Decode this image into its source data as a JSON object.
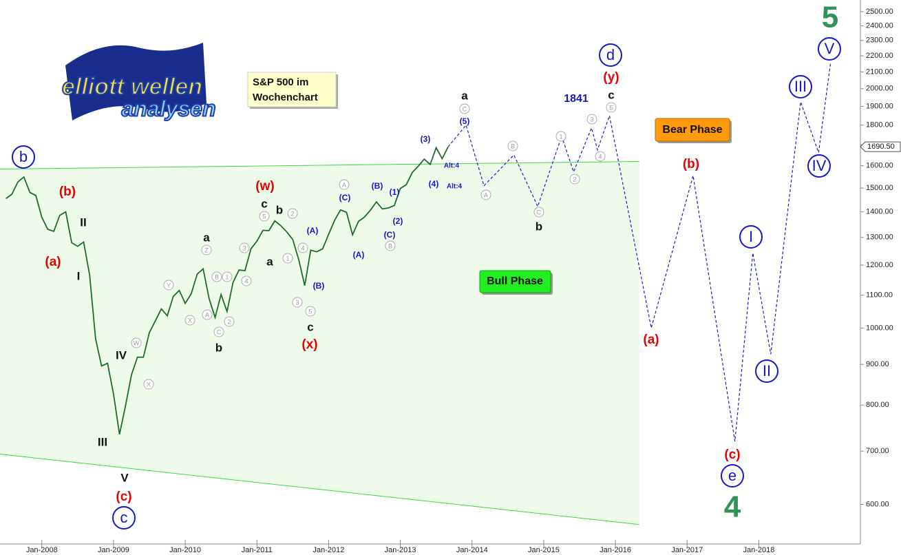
{
  "chart_data": {
    "type": "line",
    "title_lines": [
      "S&P 500 im",
      "Wochenchart"
    ],
    "logo": [
      "elliott wellen",
      "analysen"
    ],
    "bull_label": "Bull Phase",
    "bear_label": "Bear Phase",
    "log": true,
    "grid": false,
    "xlim": [
      "2007-06",
      "2019-06"
    ],
    "ylim": [
      535,
      2586
    ],
    "xticks": [
      {
        "value": "2008-01",
        "label": "Jan-2008"
      },
      {
        "value": "2009-01",
        "label": "Jan-2009"
      },
      {
        "value": "2010-01",
        "label": "Jan-2010"
      },
      {
        "value": "2011-01",
        "label": "Jan-2011"
      },
      {
        "value": "2012-01",
        "label": "Jan-2012"
      },
      {
        "value": "2013-01",
        "label": "Jan-2013"
      },
      {
        "value": "2014-01",
        "label": "Jan-2014"
      },
      {
        "value": "2015-01",
        "label": "Jan-2015"
      },
      {
        "value": "2016-01",
        "label": "Jan-2016"
      },
      {
        "value": "2017-01",
        "label": "Jan-2017"
      },
      {
        "value": "2018-01",
        "label": "Jan-2018"
      }
    ],
    "yticks": [
      {
        "value": 600,
        "label": "600.00"
      },
      {
        "value": 700,
        "label": "700.00"
      },
      {
        "value": 800,
        "label": "800.00"
      },
      {
        "value": 900,
        "label": "900.00"
      },
      {
        "value": 1000,
        "label": "1000.00"
      },
      {
        "value": 1100,
        "label": "1100.00"
      },
      {
        "value": 1200,
        "label": "1200.00"
      },
      {
        "value": 1300,
        "label": "1300.00"
      },
      {
        "value": 1400,
        "label": "1400.00"
      },
      {
        "value": 1500,
        "label": "1500.00"
      },
      {
        "value": 1600,
        "label": "1600.00"
      },
      {
        "value": 1700,
        "label": "1700.00"
      },
      {
        "value": 1800,
        "label": "1800.00"
      },
      {
        "value": 1900,
        "label": "1900.00"
      },
      {
        "value": 2000,
        "label": "2000.00"
      },
      {
        "value": 2100,
        "label": "2100.00"
      },
      {
        "value": 2200,
        "label": "2200.00"
      },
      {
        "value": 2300,
        "label": "2300.00"
      },
      {
        "value": 2400,
        "label": "2400.00"
      },
      {
        "value": 2500,
        "label": "2500.00"
      }
    ],
    "last_value": {
      "value": 1690.5,
      "label": "1690.50"
    },
    "channel": {
      "color": "#33dd33",
      "fill": "#effbea",
      "x": [
        "2007-06",
        "2016-05"
      ],
      "upper": [
        1585,
        1620
      ],
      "lower": [
        694,
        566
      ]
    },
    "series": [
      {
        "color": "#1d6b2a",
        "dashed": false,
        "x": [
          "2007-07",
          "2007-08",
          "2007-09",
          "2007-10",
          "2007-11",
          "2007-12",
          "2008-01",
          "2008-02",
          "2008-03",
          "2008-04",
          "2008-05",
          "2008-06",
          "2008-07",
          "2008-08",
          "2008-09",
          "2008-10",
          "2008-11",
          "2008-12",
          "2009-01",
          "2009-02",
          "2009-03",
          "2009-04",
          "2009-05",
          "2009-06",
          "2009-07",
          "2009-08",
          "2009-09",
          "2009-10",
          "2009-11",
          "2009-12",
          "2010-01",
          "2010-02",
          "2010-03",
          "2010-04",
          "2010-05",
          "2010-06",
          "2010-07",
          "2010-08",
          "2010-09",
          "2010-10",
          "2010-11",
          "2010-12",
          "2011-01",
          "2011-02",
          "2011-03",
          "2011-04",
          "2011-05",
          "2011-06",
          "2011-07",
          "2011-08",
          "2011-09",
          "2011-10",
          "2011-11",
          "2011-12",
          "2012-01",
          "2012-02",
          "2012-03",
          "2012-04",
          "2012-05",
          "2012-06",
          "2012-07",
          "2012-08",
          "2012-09",
          "2012-10",
          "2012-11",
          "2012-12",
          "2013-01",
          "2013-02",
          "2013-03",
          "2013-04",
          "2013-05",
          "2013-06",
          "2013-07",
          "2013-08",
          "2013-09"
        ],
        "values": [
          1455,
          1474,
          1527,
          1549,
          1481,
          1468,
          1378,
          1331,
          1323,
          1386,
          1400,
          1280,
          1267,
          1283,
          1166,
          969,
          896,
          903,
          826,
          735,
          798,
          873,
          919,
          919,
          987,
          1021,
          1057,
          1036,
          1096,
          1115,
          1074,
          1104,
          1169,
          1187,
          1089,
          1031,
          1102,
          1049,
          1141,
          1183,
          1181,
          1258,
          1286,
          1327,
          1326,
          1364,
          1345,
          1321,
          1292,
          1219,
          1131,
          1253,
          1247,
          1258,
          1312,
          1366,
          1408,
          1398,
          1310,
          1362,
          1379,
          1407,
          1441,
          1412,
          1416,
          1426,
          1498,
          1515,
          1569,
          1598,
          1631,
          1606,
          1686,
          1633,
          1690
        ]
      },
      {
        "color": "#1a1acc",
        "dashed": true,
        "x": [
          "2013-09",
          "2013-12",
          "2014-03",
          "2014-08",
          "2014-12",
          "2015-04",
          "2015-06",
          "2015-09",
          "2015-10",
          "2015-12",
          "2016-07",
          "2017-02",
          "2017-09",
          "2017-12",
          "2018-03",
          "2018-08",
          "2018-11",
          "2019-01"
        ],
        "values": [
          1690,
          1800,
          1510,
          1651,
          1422,
          1743,
          1572,
          1785,
          1675,
          1850,
          1000,
          1555,
          720,
          1243,
          927,
          1925,
          1662,
          2153
        ]
      }
    ],
    "annotations": [
      {
        "text": "b",
        "style": "blue-circle"
      },
      {
        "text": "(b)",
        "style": "red"
      },
      {
        "text": "II",
        "style": "black"
      },
      {
        "text": "(a)",
        "style": "red"
      },
      {
        "text": "I",
        "style": "black"
      },
      {
        "text": "IV",
        "style": "black"
      },
      {
        "text": "III",
        "style": "black"
      },
      {
        "text": "V",
        "style": "black"
      },
      {
        "text": "(c)",
        "style": "red"
      },
      {
        "text": "c",
        "style": "blue-circle"
      },
      {
        "text": "W",
        "style": "gray-circle"
      },
      {
        "text": "X",
        "style": "gray-circle"
      },
      {
        "text": "Y",
        "style": "gray-circle"
      },
      {
        "text": "X",
        "style": "gray-circle"
      },
      {
        "text": "a",
        "style": "black"
      },
      {
        "text": "Z",
        "style": "gray-circle"
      },
      {
        "text": "A",
        "style": "gray-circle"
      },
      {
        "text": "B",
        "style": "gray-circle"
      },
      {
        "text": "1",
        "style": "gray-circle"
      },
      {
        "text": "C",
        "style": "gray-circle"
      },
      {
        "text": "2",
        "style": "gray-circle"
      },
      {
        "text": "b",
        "style": "black"
      },
      {
        "text": "3",
        "style": "gray-circle"
      },
      {
        "text": "4",
        "style": "gray-circle"
      },
      {
        "text": "a",
        "style": "black"
      },
      {
        "text": "(w)",
        "style": "red"
      },
      {
        "text": "c",
        "style": "black"
      },
      {
        "text": "5",
        "style": "gray-circle"
      },
      {
        "text": "b",
        "style": "black"
      },
      {
        "text": "2",
        "style": "gray-circle"
      },
      {
        "text": "1",
        "style": "gray-circle"
      },
      {
        "text": "4",
        "style": "gray-circle"
      },
      {
        "text": "(A)",
        "style": "blue"
      },
      {
        "text": "3",
        "style": "gray-circle"
      },
      {
        "text": "5",
        "style": "gray-circle"
      },
      {
        "text": "(B)",
        "style": "blue"
      },
      {
        "text": "c",
        "style": "black"
      },
      {
        "text": "(x)",
        "style": "red"
      },
      {
        "text": "A",
        "style": "gray-circle"
      },
      {
        "text": "(C)",
        "style": "blue"
      },
      {
        "text": "(A)",
        "style": "blue"
      },
      {
        "text": "(B)",
        "style": "blue"
      },
      {
        "text": "(1)",
        "style": "blue"
      },
      {
        "text": "(2)",
        "style": "blue"
      },
      {
        "text": "(C)",
        "style": "blue"
      },
      {
        "text": "B",
        "style": "gray-circle"
      },
      {
        "text": "(3)",
        "style": "blue"
      },
      {
        "text": "(4)",
        "style": "blue"
      },
      {
        "text": "Alt:4",
        "style": "blue-small"
      },
      {
        "text": "Alt:4",
        "style": "blue-small"
      },
      {
        "text": "a",
        "style": "black"
      },
      {
        "text": "C",
        "style": "gray-circle"
      },
      {
        "text": "(5)",
        "style": "blue"
      },
      {
        "text": "A",
        "style": "gray-circle"
      },
      {
        "text": "B",
        "style": "gray-circle"
      },
      {
        "text": "C",
        "style": "gray-circle"
      },
      {
        "text": "b",
        "style": "black"
      },
      {
        "text": "1",
        "style": "gray-circle"
      },
      {
        "text": "2",
        "style": "gray-circle"
      },
      {
        "text": "3",
        "style": "gray-circle"
      },
      {
        "text": "4",
        "style": "gray-circle"
      },
      {
        "text": "5",
        "style": "gray-circle"
      },
      {
        "text": "c",
        "style": "black"
      },
      {
        "text": "(y)",
        "style": "red"
      },
      {
        "text": "d",
        "style": "blue-circle"
      },
      {
        "text": "1841",
        "style": "blue-mid"
      },
      {
        "text": "(a)",
        "style": "red"
      },
      {
        "text": "(b)",
        "style": "red"
      },
      {
        "text": "(c)",
        "style": "red"
      },
      {
        "text": "e",
        "style": "blue-circle"
      },
      {
        "text": "4",
        "style": "green-big"
      },
      {
        "text": "I",
        "style": "blue-circle"
      },
      {
        "text": "II",
        "style": "blue-circle"
      },
      {
        "text": "III",
        "style": "blue-circle"
      },
      {
        "text": "IV",
        "style": "blue-circle"
      },
      {
        "text": "V",
        "style": "blue-circle"
      },
      {
        "text": "5",
        "style": "green-big"
      }
    ]
  }
}
